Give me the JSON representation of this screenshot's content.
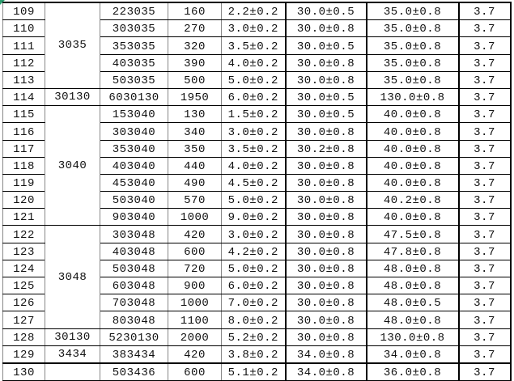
{
  "rows": [
    {
      "no": "109",
      "model": "223035",
      "cap": "160",
      "t": "2.2±0.2",
      "w": "30.0±0.5",
      "l": "35.0±0.8",
      "v": "3.7"
    },
    {
      "no": "110",
      "model": "303035",
      "cap": "270",
      "t": "3.0±0.2",
      "w": "30.0±0.8",
      "l": "35.0±0.8",
      "v": "3.7"
    },
    {
      "no": "111",
      "model": "353035",
      "cap": "320",
      "t": "3.5±0.2",
      "w": "30.0±0.5",
      "l": "35.0±0.8",
      "v": "3.7"
    },
    {
      "no": "112",
      "model": "403035",
      "cap": "390",
      "t": "4.0±0.2",
      "w": "30.0±0.8",
      "l": "35.0±0.8",
      "v": "3.7"
    },
    {
      "no": "113",
      "model": "503035",
      "cap": "500",
      "t": "5.0±0.2",
      "w": "30.0±0.8",
      "l": "35.0±0.8",
      "v": "3.7"
    },
    {
      "no": "114",
      "model": "6030130",
      "cap": "1950",
      "t": "6.0±0.2",
      "w": "30.0±0.5",
      "l": "130.0±0.8",
      "v": "3.7"
    },
    {
      "no": "115",
      "model": "153040",
      "cap": "130",
      "t": "1.5±0.2",
      "w": "30.0±0.5",
      "l": "40.0±0.8",
      "v": "3.7"
    },
    {
      "no": "116",
      "model": "303040",
      "cap": "340",
      "t": "3.0±0.2",
      "w": "30.0±0.8",
      "l": "40.0±0.8",
      "v": "3.7"
    },
    {
      "no": "117",
      "model": "353040",
      "cap": "350",
      "t": "3.5±0.2",
      "w": "30.2±0.8",
      "l": "40.0±0.8",
      "v": "3.7"
    },
    {
      "no": "118",
      "model": "403040",
      "cap": "440",
      "t": "4.0±0.2",
      "w": "30.0±0.8",
      "l": "40.0±0.8",
      "v": "3.7"
    },
    {
      "no": "119",
      "model": "453040",
      "cap": "490",
      "t": "4.5±0.2",
      "w": "30.0±0.8",
      "l": "40.0±0.8",
      "v": "3.7"
    },
    {
      "no": "120",
      "model": "503040",
      "cap": "570",
      "t": "5.0±0.2",
      "w": "30.0±0.8",
      "l": "40.2±0.8",
      "v": "3.7"
    },
    {
      "no": "121",
      "model": "903040",
      "cap": "1000",
      "t": "9.0±0.2",
      "w": "30.0±0.8",
      "l": "40.0±0.8",
      "v": "3.7"
    },
    {
      "no": "122",
      "model": "303048",
      "cap": "420",
      "t": "3.0±0.2",
      "w": "30.0±0.8",
      "l": "47.5±0.8",
      "v": "3.7"
    },
    {
      "no": "123",
      "model": "403048",
      "cap": "600",
      "t": "4.2±0.2",
      "w": "30.0±0.8",
      "l": "47.8±0.8",
      "v": "3.7"
    },
    {
      "no": "124",
      "model": "503048",
      "cap": "720",
      "t": "5.0±0.2",
      "w": "30.0±0.8",
      "l": "48.0±0.8",
      "v": "3.7"
    },
    {
      "no": "125",
      "model": "603048",
      "cap": "900",
      "t": "6.0±0.2",
      "w": "30.0±0.8",
      "l": "48.0±0.8",
      "v": "3.7"
    },
    {
      "no": "126",
      "model": "703048",
      "cap": "1000",
      "t": "7.0±0.2",
      "w": "30.0±0.8",
      "l": "48.0±0.5",
      "v": "3.7"
    },
    {
      "no": "127",
      "model": "803048",
      "cap": "1100",
      "t": "8.0±0.2",
      "w": "30.0±0.8",
      "l": "48.0±0.8",
      "v": "3.7"
    },
    {
      "no": "128",
      "model": "5230130",
      "cap": "2000",
      "t": "5.2±0.2",
      "w": "30.0±0.8",
      "l": "130.0±0.8",
      "v": "3.7"
    },
    {
      "no": "129",
      "model": "383434",
      "cap": "420",
      "t": "3.8±0.2",
      "w": "34.0±0.8",
      "l": "34.0±0.8",
      "v": "3.7"
    },
    {
      "no": "130",
      "model": "503436",
      "cap": "600",
      "t": "5.1±0.2",
      "w": "34.0±0.8",
      "l": "36.0±0.8",
      "v": "3.7"
    }
  ],
  "groups": [
    {
      "label": "3035",
      "span": 5
    },
    {
      "label": "30130",
      "span": 1
    },
    {
      "label": "3040",
      "span": 7
    },
    {
      "label": "3048",
      "span": 6
    },
    {
      "label": "30130",
      "span": 1
    },
    {
      "label": "3434",
      "span": 1
    },
    {
      "label": "",
      "span": 1
    }
  ],
  "selection_marker_color": "#2a9d6f"
}
